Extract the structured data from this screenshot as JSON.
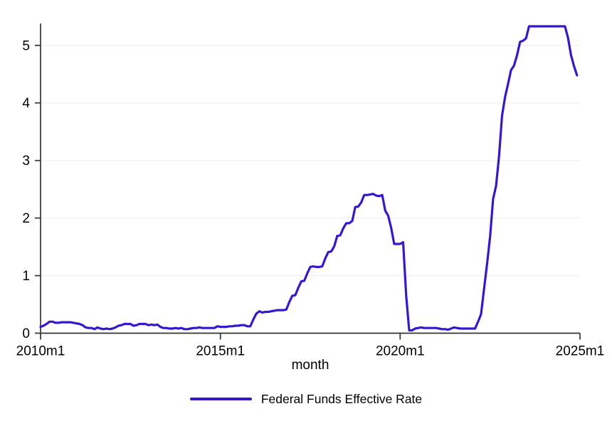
{
  "figure": {
    "background": "#ffffff",
    "xlabel": "month",
    "legend": {
      "label": "Federal Funds Effective Rate"
    }
  },
  "style": {
    "line_color": "#3318cc",
    "axis_color": "#333333",
    "grid_color": "#ecf3f1",
    "text_color": "#000000"
  },
  "chart_data": {
    "type": "line",
    "title": "",
    "xlabel": "month",
    "ylabel": "",
    "x_start": "2010m1",
    "x_end": "2024m12",
    "x_frequency": "monthly",
    "xlim_months": [
      0,
      180
    ],
    "ylim": [
      0,
      5.38
    ],
    "yticks": [
      0,
      1,
      2,
      3,
      4,
      5
    ],
    "xticks": [
      {
        "label": "2010m1",
        "month_index": 0
      },
      {
        "label": "2015m1",
        "month_index": 60
      },
      {
        "label": "2020m1",
        "month_index": 120
      },
      {
        "label": "2025m1",
        "month_index": 180
      }
    ],
    "grid": "horizontal",
    "legend_position": "bottom-center",
    "series": [
      {
        "name": "Federal Funds Effective Rate",
        "color": "#3318cc",
        "values": [
          0.11,
          0.13,
          0.16,
          0.2,
          0.2,
          0.18,
          0.18,
          0.19,
          0.19,
          0.19,
          0.19,
          0.18,
          0.17,
          0.16,
          0.14,
          0.1,
          0.09,
          0.09,
          0.07,
          0.1,
          0.08,
          0.07,
          0.08,
          0.07,
          0.08,
          0.1,
          0.13,
          0.14,
          0.16,
          0.16,
          0.16,
          0.13,
          0.14,
          0.16,
          0.16,
          0.16,
          0.14,
          0.15,
          0.14,
          0.15,
          0.11,
          0.09,
          0.09,
          0.08,
          0.08,
          0.09,
          0.08,
          0.09,
          0.07,
          0.07,
          0.08,
          0.09,
          0.09,
          0.1,
          0.09,
          0.09,
          0.09,
          0.09,
          0.09,
          0.12,
          0.11,
          0.11,
          0.11,
          0.12,
          0.12,
          0.13,
          0.13,
          0.14,
          0.14,
          0.12,
          0.12,
          0.24,
          0.34,
          0.38,
          0.36,
          0.37,
          0.37,
          0.38,
          0.39,
          0.4,
          0.4,
          0.4,
          0.41,
          0.54,
          0.65,
          0.66,
          0.79,
          0.9,
          0.91,
          1.04,
          1.15,
          1.16,
          1.15,
          1.15,
          1.16,
          1.3,
          1.41,
          1.42,
          1.51,
          1.69,
          1.7,
          1.82,
          1.91,
          1.91,
          1.95,
          2.19,
          2.2,
          2.27,
          2.4,
          2.4,
          2.41,
          2.42,
          2.39,
          2.38,
          2.4,
          2.13,
          2.04,
          1.83,
          1.55,
          1.55,
          1.55,
          1.58,
          0.65,
          0.05,
          0.05,
          0.08,
          0.09,
          0.1,
          0.09,
          0.09,
          0.09,
          0.09,
          0.09,
          0.08,
          0.07,
          0.07,
          0.06,
          0.08,
          0.1,
          0.09,
          0.08,
          0.08,
          0.08,
          0.08,
          0.08,
          0.08,
          0.2,
          0.33,
          0.77,
          1.21,
          1.68,
          2.33,
          2.56,
          3.08,
          3.78,
          4.1,
          4.33,
          4.57,
          4.65,
          4.83,
          5.06,
          5.08,
          5.12,
          5.33,
          5.33,
          5.33,
          5.33,
          5.33,
          5.33,
          5.33,
          5.33,
          5.33,
          5.33,
          5.33,
          5.33,
          5.33,
          5.13,
          4.83,
          4.64,
          4.48
        ]
      }
    ]
  }
}
